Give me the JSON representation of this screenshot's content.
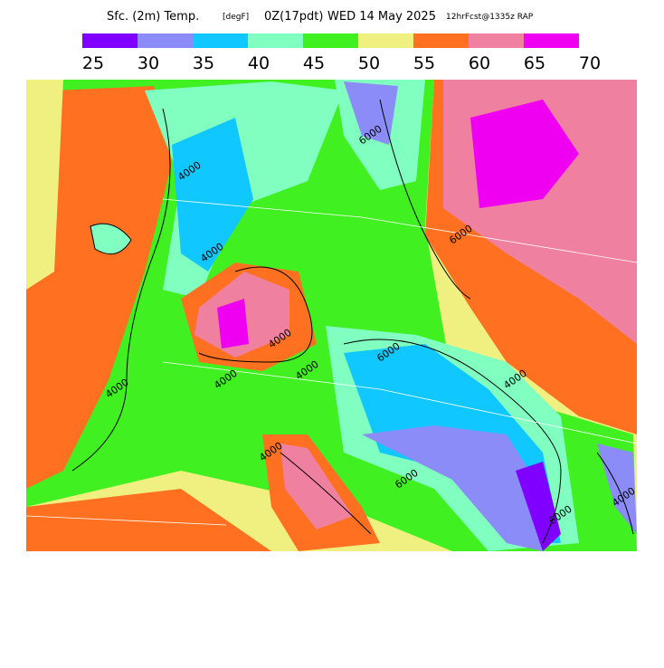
{
  "title": {
    "field": "Sfc. (2m) Temp.",
    "units": "[degF]",
    "valid": "0Z(17pdt)",
    "date": "WED 14 May 2025",
    "run": "12hrFcst@1335z RAP"
  },
  "colorbar": {
    "colors": [
      "#8000ff",
      "#8c8cf8",
      "#10c8ff",
      "#80ffc0",
      "#40f020",
      "#f0f080",
      "#ff7020",
      "#f080a0",
      "#f000f0"
    ],
    "labels": [
      25,
      30,
      35,
      40,
      45,
      50,
      55,
      60,
      65,
      70
    ]
  },
  "contour_labels": [
    "4000",
    "4000",
    "4000",
    "4000",
    "6000",
    "6000",
    "4000",
    "6000",
    "4000",
    "4000",
    "4000",
    "6000",
    "6000",
    "4000"
  ]
}
